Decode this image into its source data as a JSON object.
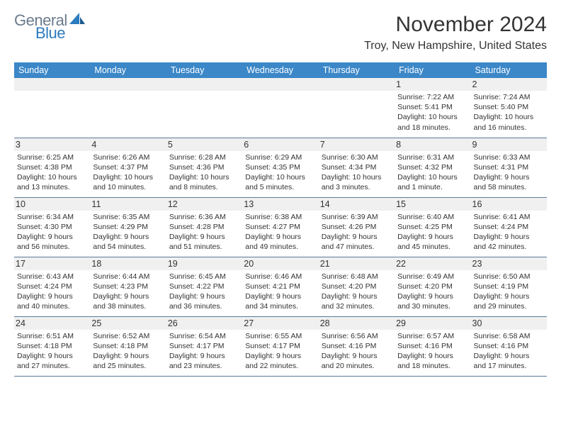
{
  "logo": {
    "word1": "General",
    "word2": "Blue"
  },
  "title": "November 2024",
  "location": "Troy, New Hampshire, United States",
  "colors": {
    "header_bg": "#3b87c8",
    "header_text": "#ffffff",
    "daynum_bg": "#f0f0f0",
    "border": "#5a7a9a",
    "logo_gray": "#6b7b8c",
    "logo_blue": "#2b7bbf"
  },
  "weekdays": [
    "Sunday",
    "Monday",
    "Tuesday",
    "Wednesday",
    "Thursday",
    "Friday",
    "Saturday"
  ],
  "weeks": [
    [
      null,
      null,
      null,
      null,
      null,
      {
        "n": "1",
        "sr": "Sunrise: 7:22 AM",
        "ss": "Sunset: 5:41 PM",
        "d1": "Daylight: 10 hours",
        "d2": "and 18 minutes."
      },
      {
        "n": "2",
        "sr": "Sunrise: 7:24 AM",
        "ss": "Sunset: 5:40 PM",
        "d1": "Daylight: 10 hours",
        "d2": "and 16 minutes."
      }
    ],
    [
      {
        "n": "3",
        "sr": "Sunrise: 6:25 AM",
        "ss": "Sunset: 4:38 PM",
        "d1": "Daylight: 10 hours",
        "d2": "and 13 minutes."
      },
      {
        "n": "4",
        "sr": "Sunrise: 6:26 AM",
        "ss": "Sunset: 4:37 PM",
        "d1": "Daylight: 10 hours",
        "d2": "and 10 minutes."
      },
      {
        "n": "5",
        "sr": "Sunrise: 6:28 AM",
        "ss": "Sunset: 4:36 PM",
        "d1": "Daylight: 10 hours",
        "d2": "and 8 minutes."
      },
      {
        "n": "6",
        "sr": "Sunrise: 6:29 AM",
        "ss": "Sunset: 4:35 PM",
        "d1": "Daylight: 10 hours",
        "d2": "and 5 minutes."
      },
      {
        "n": "7",
        "sr": "Sunrise: 6:30 AM",
        "ss": "Sunset: 4:34 PM",
        "d1": "Daylight: 10 hours",
        "d2": "and 3 minutes."
      },
      {
        "n": "8",
        "sr": "Sunrise: 6:31 AM",
        "ss": "Sunset: 4:32 PM",
        "d1": "Daylight: 10 hours",
        "d2": "and 1 minute."
      },
      {
        "n": "9",
        "sr": "Sunrise: 6:33 AM",
        "ss": "Sunset: 4:31 PM",
        "d1": "Daylight: 9 hours",
        "d2": "and 58 minutes."
      }
    ],
    [
      {
        "n": "10",
        "sr": "Sunrise: 6:34 AM",
        "ss": "Sunset: 4:30 PM",
        "d1": "Daylight: 9 hours",
        "d2": "and 56 minutes."
      },
      {
        "n": "11",
        "sr": "Sunrise: 6:35 AM",
        "ss": "Sunset: 4:29 PM",
        "d1": "Daylight: 9 hours",
        "d2": "and 54 minutes."
      },
      {
        "n": "12",
        "sr": "Sunrise: 6:36 AM",
        "ss": "Sunset: 4:28 PM",
        "d1": "Daylight: 9 hours",
        "d2": "and 51 minutes."
      },
      {
        "n": "13",
        "sr": "Sunrise: 6:38 AM",
        "ss": "Sunset: 4:27 PM",
        "d1": "Daylight: 9 hours",
        "d2": "and 49 minutes."
      },
      {
        "n": "14",
        "sr": "Sunrise: 6:39 AM",
        "ss": "Sunset: 4:26 PM",
        "d1": "Daylight: 9 hours",
        "d2": "and 47 minutes."
      },
      {
        "n": "15",
        "sr": "Sunrise: 6:40 AM",
        "ss": "Sunset: 4:25 PM",
        "d1": "Daylight: 9 hours",
        "d2": "and 45 minutes."
      },
      {
        "n": "16",
        "sr": "Sunrise: 6:41 AM",
        "ss": "Sunset: 4:24 PM",
        "d1": "Daylight: 9 hours",
        "d2": "and 42 minutes."
      }
    ],
    [
      {
        "n": "17",
        "sr": "Sunrise: 6:43 AM",
        "ss": "Sunset: 4:24 PM",
        "d1": "Daylight: 9 hours",
        "d2": "and 40 minutes."
      },
      {
        "n": "18",
        "sr": "Sunrise: 6:44 AM",
        "ss": "Sunset: 4:23 PM",
        "d1": "Daylight: 9 hours",
        "d2": "and 38 minutes."
      },
      {
        "n": "19",
        "sr": "Sunrise: 6:45 AM",
        "ss": "Sunset: 4:22 PM",
        "d1": "Daylight: 9 hours",
        "d2": "and 36 minutes."
      },
      {
        "n": "20",
        "sr": "Sunrise: 6:46 AM",
        "ss": "Sunset: 4:21 PM",
        "d1": "Daylight: 9 hours",
        "d2": "and 34 minutes."
      },
      {
        "n": "21",
        "sr": "Sunrise: 6:48 AM",
        "ss": "Sunset: 4:20 PM",
        "d1": "Daylight: 9 hours",
        "d2": "and 32 minutes."
      },
      {
        "n": "22",
        "sr": "Sunrise: 6:49 AM",
        "ss": "Sunset: 4:20 PM",
        "d1": "Daylight: 9 hours",
        "d2": "and 30 minutes."
      },
      {
        "n": "23",
        "sr": "Sunrise: 6:50 AM",
        "ss": "Sunset: 4:19 PM",
        "d1": "Daylight: 9 hours",
        "d2": "and 29 minutes."
      }
    ],
    [
      {
        "n": "24",
        "sr": "Sunrise: 6:51 AM",
        "ss": "Sunset: 4:18 PM",
        "d1": "Daylight: 9 hours",
        "d2": "and 27 minutes."
      },
      {
        "n": "25",
        "sr": "Sunrise: 6:52 AM",
        "ss": "Sunset: 4:18 PM",
        "d1": "Daylight: 9 hours",
        "d2": "and 25 minutes."
      },
      {
        "n": "26",
        "sr": "Sunrise: 6:54 AM",
        "ss": "Sunset: 4:17 PM",
        "d1": "Daylight: 9 hours",
        "d2": "and 23 minutes."
      },
      {
        "n": "27",
        "sr": "Sunrise: 6:55 AM",
        "ss": "Sunset: 4:17 PM",
        "d1": "Daylight: 9 hours",
        "d2": "and 22 minutes."
      },
      {
        "n": "28",
        "sr": "Sunrise: 6:56 AM",
        "ss": "Sunset: 4:16 PM",
        "d1": "Daylight: 9 hours",
        "d2": "and 20 minutes."
      },
      {
        "n": "29",
        "sr": "Sunrise: 6:57 AM",
        "ss": "Sunset: 4:16 PM",
        "d1": "Daylight: 9 hours",
        "d2": "and 18 minutes."
      },
      {
        "n": "30",
        "sr": "Sunrise: 6:58 AM",
        "ss": "Sunset: 4:16 PM",
        "d1": "Daylight: 9 hours",
        "d2": "and 17 minutes."
      }
    ]
  ]
}
